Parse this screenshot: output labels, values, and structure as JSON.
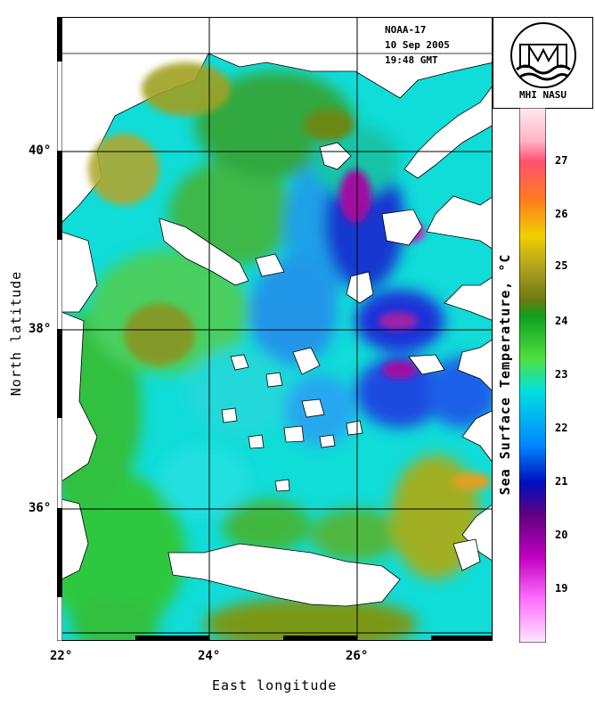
{
  "satellite": {
    "name": "NOAA-17",
    "date": "10 Sep 2005",
    "time": "19:48 GMT"
  },
  "logo": {
    "caption": "MHI NASU"
  },
  "axes": {
    "xlabel": "East longitude",
    "ylabel": "North latitude",
    "lon_ticks": [
      "22°",
      "24°",
      "26°"
    ],
    "lat_ticks": [
      "40°",
      "38°",
      "36°"
    ]
  },
  "colorbar": {
    "title": "Sea Surface Temperature, °C",
    "tick_labels": [
      "27",
      "26",
      "25",
      "24",
      "23",
      "22",
      "21",
      "20",
      "19"
    ],
    "colors": [
      "#ffe8f5",
      "#ffb0c8",
      "#ff4060",
      "#ff8020",
      "#f0e000",
      "#7a7a10",
      "#00a000",
      "#60e040",
      "#00e0e0",
      "#0080ff",
      "#0000c0",
      "#600080",
      "#c000c0",
      "#ff60ff",
      "#ffd8ff"
    ]
  }
}
